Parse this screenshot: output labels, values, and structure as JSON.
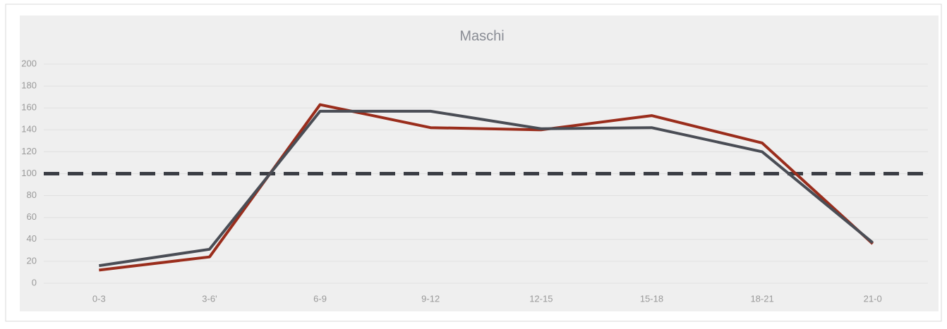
{
  "chart_data": {
    "type": "line",
    "title": "Maschi",
    "categories": [
      "0-3",
      "3-6'",
      "6-9",
      "9-12",
      "12-15",
      "15-18",
      "18-21",
      "21-0"
    ],
    "series": [
      {
        "color": "#9a2d1c",
        "values": [
          12,
          24,
          163,
          142,
          140,
          153,
          128,
          36
        ]
      },
      {
        "color": "#4a4d55",
        "values": [
          16,
          31,
          157,
          157,
          141,
          142,
          120,
          37
        ]
      }
    ],
    "reference_line": {
      "value": 100,
      "color": "#3a3d44",
      "dashed": true
    },
    "ylim": [
      0,
      200
    ],
    "yticks": [
      0,
      20,
      40,
      60,
      80,
      100,
      120,
      140,
      160,
      180,
      200
    ],
    "grid": true
  }
}
